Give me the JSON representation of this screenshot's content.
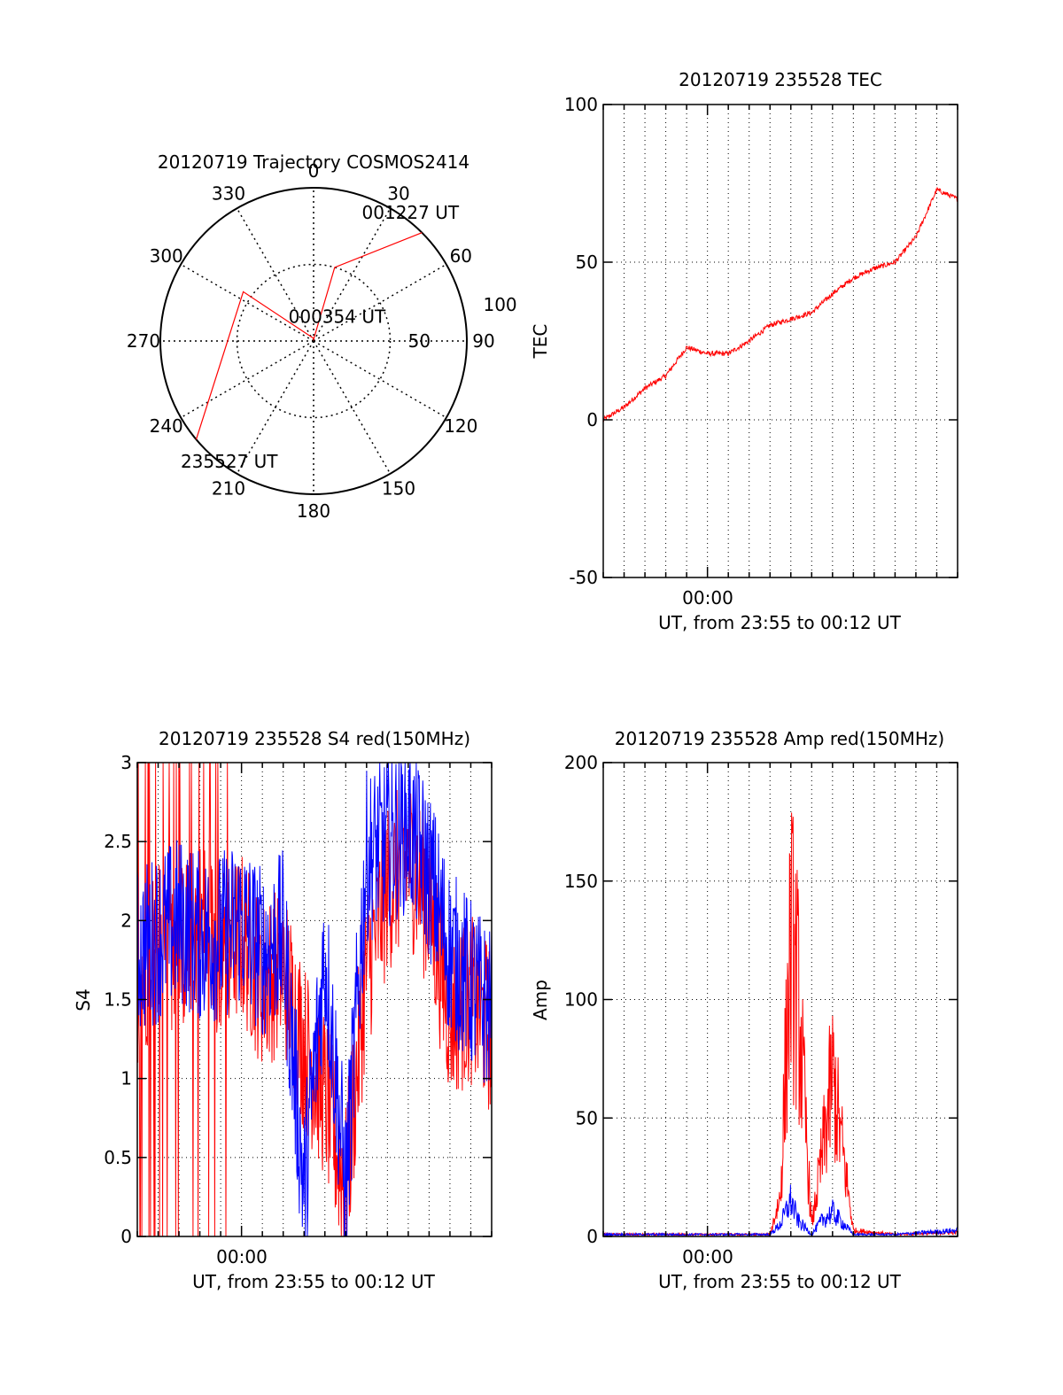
{
  "colors": {
    "red": "#ff0000",
    "blue": "#0000ff",
    "axis": "#000000",
    "grid": "#000000"
  },
  "chart_data": [
    {
      "type": "polar",
      "title": "20120719 Trajectory COSMOS2414",
      "angle_labels": [
        "0",
        "30",
        "60",
        "90",
        "120",
        "150",
        "180",
        "210",
        "240",
        "270",
        "300",
        "330"
      ],
      "radius_labels": [
        "50",
        "100"
      ],
      "radius_max": 100,
      "grid": true,
      "series": [
        {
          "color": "red",
          "points": [
            [
              45,
              100
            ],
            [
              16,
              50
            ],
            [
              0,
              1
            ],
            [
              350,
              2
            ],
            [
              305,
              56
            ],
            [
              230,
              100
            ]
          ]
        }
      ],
      "annotations": [
        {
          "text": "001227 UT",
          "az": 37,
          "r": 105
        },
        {
          "text": "000354 UT",
          "az": 44,
          "r": 22
        },
        {
          "text": "235527 UT",
          "az": 215,
          "r": 96
        }
      ]
    },
    {
      "type": "line",
      "title": "20120719 235528 TEC",
      "xlabel": "UT, from 23:55 to 00:12 UT",
      "ylabel": "TEC",
      "x_tick_label": "00:00",
      "xlim": [
        "23:55",
        "00:12"
      ],
      "ylim": [
        -50,
        100
      ],
      "y_ticks": [
        -50,
        0,
        50,
        100
      ],
      "grid": true,
      "series": [
        {
          "color": "red",
          "x": [
            "23:55",
            "23:56",
            "23:57",
            "23:58",
            "23:59",
            "00:00",
            "00:01",
            "00:02",
            "00:03",
            "00:04",
            "00:05",
            "00:06",
            "00:07",
            "00:08",
            "00:09",
            "00:10",
            "00:11",
            "00:12"
          ],
          "y": [
            0,
            4,
            10,
            14,
            23,
            21,
            21,
            25,
            30,
            32,
            34,
            40,
            45,
            48,
            50,
            58,
            73,
            70
          ]
        }
      ]
    },
    {
      "type": "line",
      "title": "20120719 235528 S4 red(150MHz)",
      "xlabel": "UT, from 23:55 to 00:12 UT",
      "ylabel": "S4",
      "x_tick_label": "00:00",
      "xlim": [
        "23:55",
        "00:12"
      ],
      "ylim": [
        0,
        3
      ],
      "y_ticks": [
        0,
        0.5,
        1,
        1.5,
        2,
        2.5,
        3
      ],
      "grid": true,
      "series": [
        {
          "color": "red",
          "x": [
            "23:55",
            "23:56",
            "23:57",
            "23:58",
            "23:59",
            "00:00",
            "00:01",
            "00:02",
            "00:03",
            "00:04",
            "00:05",
            "00:06",
            "00:07",
            "00:08",
            "00:09",
            "00:10",
            "00:11",
            "00:12"
          ],
          "y": [
            1.6,
            1.9,
            1.8,
            2.0,
            1.8,
            1.9,
            1.6,
            1.7,
            1.2,
            0.9,
            0.3,
            1.7,
            2.2,
            2.4,
            2.1,
            1.4,
            1.5,
            1.3
          ]
        },
        {
          "color": "blue",
          "x": [
            "23:55",
            "23:56",
            "23:57",
            "23:58",
            "23:59",
            "00:00",
            "00:01",
            "00:02",
            "00:03",
            "00:04",
            "00:05",
            "00:06",
            "00:07",
            "00:08",
            "00:09",
            "00:10",
            "00:11",
            "00:12"
          ],
          "y": [
            1.8,
            1.9,
            2.0,
            1.9,
            1.9,
            2.0,
            1.8,
            1.9,
            0.3,
            1.8,
            0.3,
            2.4,
            2.5,
            2.6,
            2.3,
            1.8,
            1.6,
            1.4
          ]
        }
      ]
    },
    {
      "type": "line",
      "title": "20120719 235528 Amp red(150MHz)",
      "xlabel": "UT, from 23:55 to 00:12 UT",
      "ylabel": "Amp",
      "x_tick_label": "00:00",
      "xlim": [
        "23:55",
        "00:12"
      ],
      "ylim": [
        0,
        200
      ],
      "y_ticks": [
        0,
        50,
        100,
        150,
        200
      ],
      "grid": true,
      "series": [
        {
          "color": "red",
          "x": [
            "23:55",
            "23:58",
            "00:03",
            "00:03:30",
            "00:04",
            "00:04:20",
            "00:05",
            "00:05:30",
            "00:06",
            "00:07",
            "00:09",
            "00:12"
          ],
          "y": [
            1,
            1,
            1,
            20,
            148,
            120,
            5,
            40,
            80,
            3,
            1,
            2
          ]
        },
        {
          "color": "blue",
          "x": [
            "23:55",
            "23:58",
            "00:03",
            "00:03:30",
            "00:04",
            "00:04:20",
            "00:05",
            "00:05:30",
            "00:06",
            "00:07",
            "00:09",
            "00:12"
          ],
          "y": [
            1,
            1,
            1,
            6,
            18,
            8,
            1,
            8,
            12,
            1,
            1,
            3
          ]
        }
      ]
    }
  ]
}
